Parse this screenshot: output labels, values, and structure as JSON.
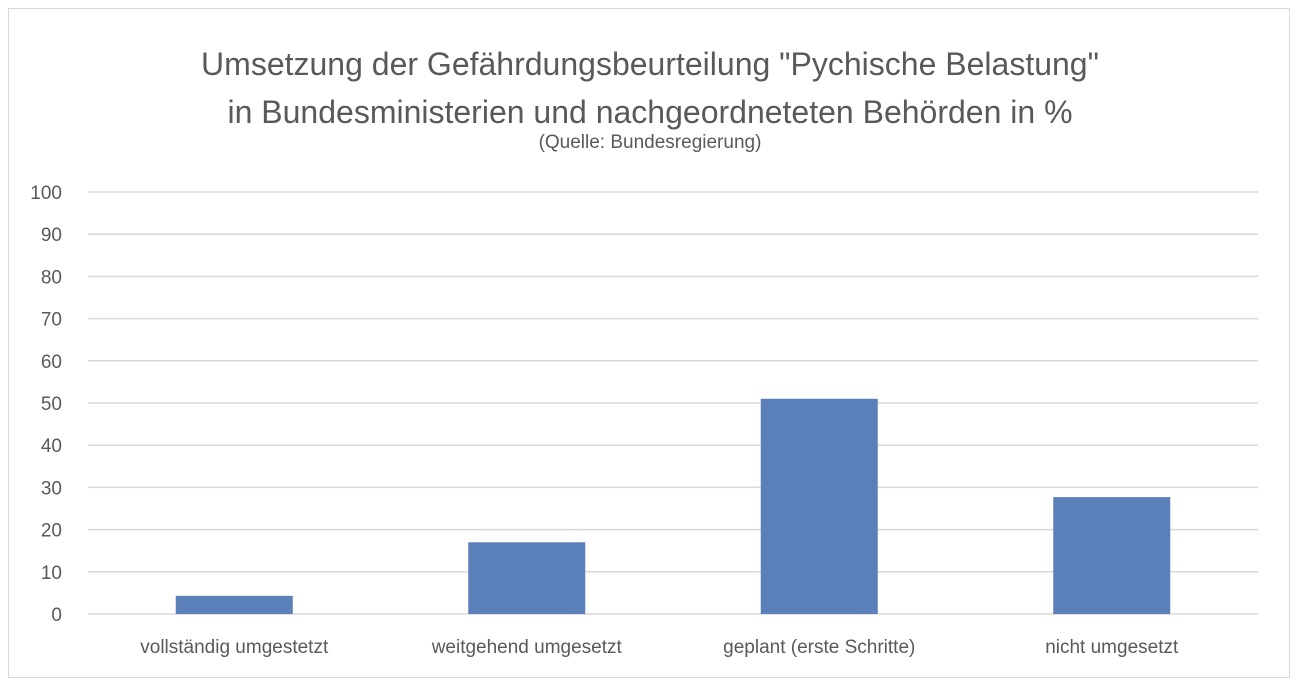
{
  "chart_data": {
    "type": "bar",
    "title": "Umsetzung der Gefährdungsbeurteilung \"Pychische Belastung\"\nin Bundesministerien und nachgeordneteten Behörden in %",
    "subtitle": "(Quelle: Bundesregierung)",
    "categories": [
      "vollständig umgestetzt",
      "weitgehend umgesetzt",
      "geplant (erste Schritte)",
      "nicht umgesetzt"
    ],
    "values": [
      4.3,
      17,
      51,
      27.7
    ],
    "xlabel": "",
    "ylabel": "",
    "ylim": [
      0,
      100
    ],
    "yticks": [
      0,
      10,
      20,
      30,
      40,
      50,
      60,
      70,
      80,
      90,
      100
    ],
    "grid": true,
    "legend": "none",
    "bar_color": "#5b7fb8",
    "grid_color": "#d9d9d9",
    "text_color": "#595959"
  }
}
